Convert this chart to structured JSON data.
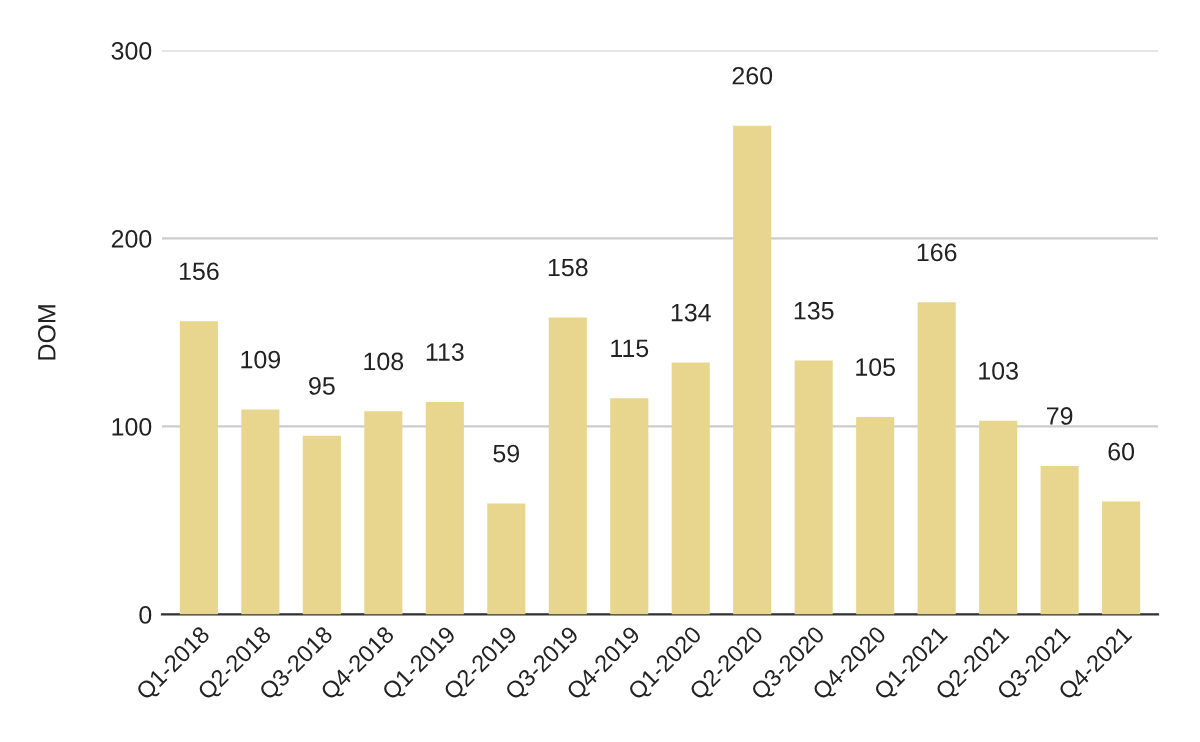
{
  "chart_data": {
    "type": "bar",
    "ylabel": "DOM",
    "categories": [
      "Q1-2018",
      "Q2-2018",
      "Q3-2018",
      "Q4-2018",
      "Q1-2019",
      "Q2-2019",
      "Q3-2019",
      "Q4-2019",
      "Q1-2020",
      "Q2-2020",
      "Q3-2020",
      "Q4-2020",
      "Q1-2021",
      "Q2-2021",
      "Q3-2021",
      "Q4-2021"
    ],
    "values": [
      156,
      109,
      95,
      108,
      113,
      59,
      158,
      115,
      134,
      260,
      135,
      105,
      166,
      103,
      79,
      60
    ],
    "color": "#e8d68f",
    "ylim": [
      0,
      300
    ],
    "yticks": [
      0,
      100,
      200,
      300
    ],
    "grid": "y",
    "data_labels": true
  }
}
